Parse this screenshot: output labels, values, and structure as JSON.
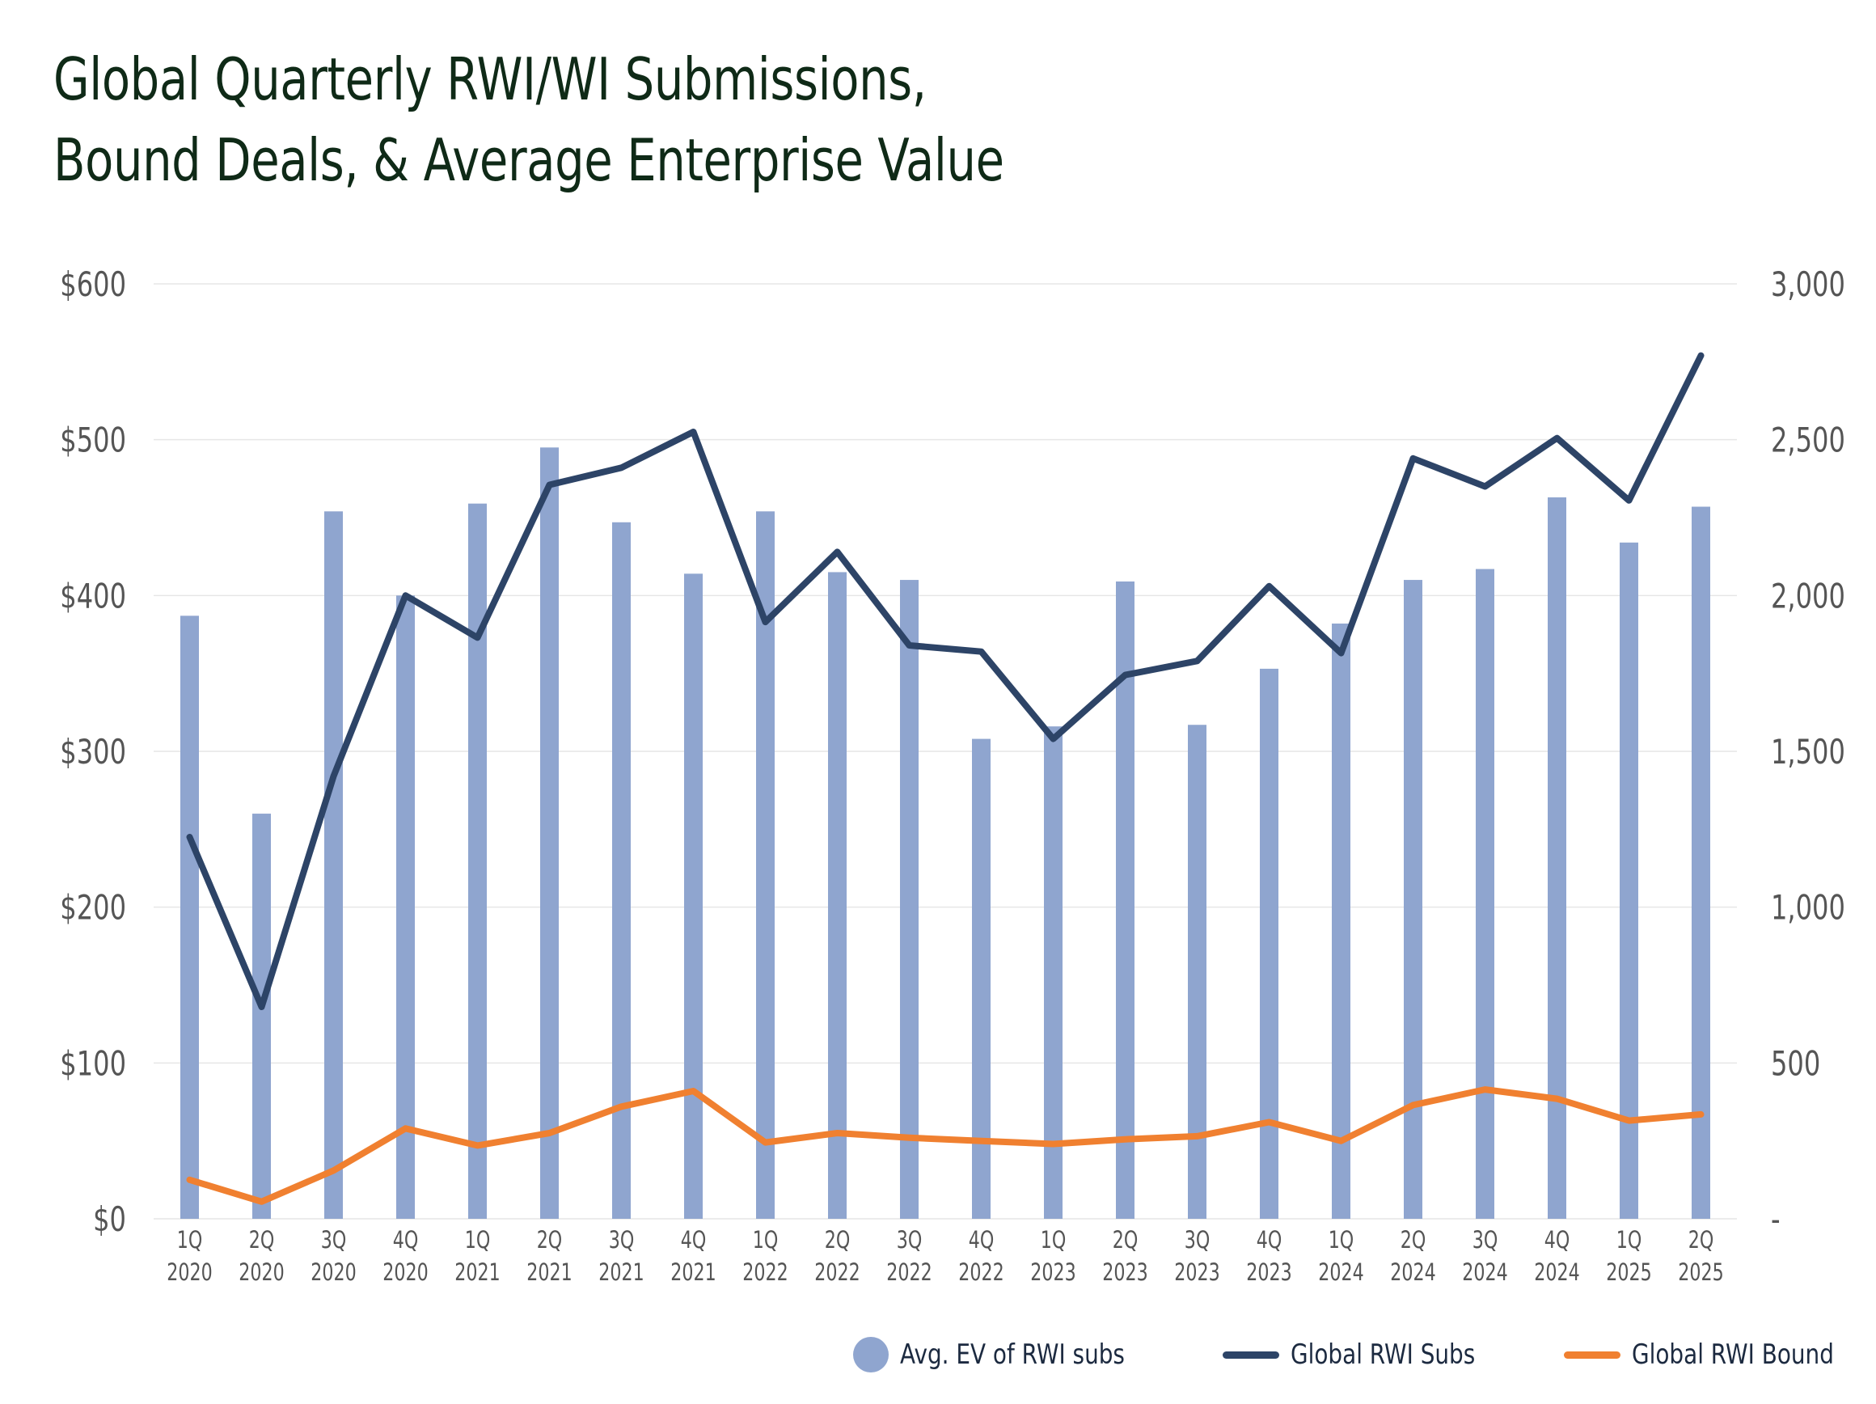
{
  "title": {
    "line1": "Global Quarterly RWI/WI Submissions,",
    "line2": "Bound Deals, & Average Enterprise Value"
  },
  "colors": {
    "bar": "#8fa5cf",
    "subs_line": "#2d4467",
    "bound_line": "#f08030",
    "grid": "#e6e6e6",
    "axis_text": "#555555",
    "title": "#0f2a17"
  },
  "legend": {
    "position": "bottom-right",
    "items": [
      {
        "label": "Avg. EV of RWI subs",
        "shape": "circle",
        "color": "#8fa5cf"
      },
      {
        "label": "Global RWI Subs",
        "shape": "line",
        "color": "#2d4467"
      },
      {
        "label": "Global RWI Bound",
        "shape": "line",
        "color": "#f08030"
      }
    ]
  },
  "chart_data": {
    "type": "bar",
    "title": "Global Quarterly RWI/WI Submissions, Bound Deals, & Average Enterprise Value",
    "categories": [
      [
        "1Q",
        "2020"
      ],
      [
        "2Q",
        "2020"
      ],
      [
        "3Q",
        "2020"
      ],
      [
        "4Q",
        "2020"
      ],
      [
        "1Q",
        "2021"
      ],
      [
        "2Q",
        "2021"
      ],
      [
        "3Q",
        "2021"
      ],
      [
        "4Q",
        "2021"
      ],
      [
        "1Q",
        "2022"
      ],
      [
        "2Q",
        "2022"
      ],
      [
        "3Q",
        "2022"
      ],
      [
        "4Q",
        "2022"
      ],
      [
        "1Q",
        "2023"
      ],
      [
        "2Q",
        "2023"
      ],
      [
        "3Q",
        "2023"
      ],
      [
        "4Q",
        "2023"
      ],
      [
        "1Q",
        "2024"
      ],
      [
        "2Q",
        "2024"
      ],
      [
        "3Q",
        "2024"
      ],
      [
        "4Q",
        "2024"
      ],
      [
        "1Q",
        "2025"
      ],
      [
        "2Q",
        "2025"
      ]
    ],
    "left_axis": {
      "ylim": [
        0,
        600
      ],
      "ticks": [
        0,
        100,
        200,
        300,
        400,
        500,
        600
      ],
      "tick_labels": [
        "$0",
        "$100",
        "$200",
        "$300",
        "$400",
        "$500",
        "$600"
      ]
    },
    "right_axis": {
      "ylim": [
        0,
        3000
      ],
      "ticks": [
        0,
        500,
        1000,
        1500,
        2000,
        2500,
        3000
      ],
      "tick_labels": [
        "-",
        "500",
        "1,000",
        "1,500",
        "2,000",
        "2,500",
        "3,000"
      ]
    },
    "grid": true,
    "series": [
      {
        "name": "Avg. EV of RWI subs",
        "type": "bar",
        "axis": "left",
        "values": [
          387,
          260,
          454,
          400,
          459,
          495,
          447,
          414,
          454,
          415,
          410,
          308,
          316,
          409,
          317,
          353,
          382,
          410,
          417,
          463,
          434,
          457
        ]
      },
      {
        "name": "Global RWI Subs",
        "type": "line",
        "axis": "right",
        "values": [
          1225,
          680,
          1420,
          2000,
          1865,
          2355,
          2410,
          2525,
          1915,
          2140,
          1840,
          1820,
          1540,
          1745,
          1790,
          2030,
          1815,
          2440,
          2350,
          2505,
          2305,
          2770
        ]
      },
      {
        "name": "Global RWI Bound",
        "type": "line",
        "axis": "right",
        "values": [
          125,
          55,
          155,
          290,
          235,
          275,
          360,
          410,
          245,
          275,
          260,
          250,
          240,
          255,
          265,
          310,
          250,
          365,
          415,
          385,
          315,
          335
        ]
      }
    ]
  }
}
